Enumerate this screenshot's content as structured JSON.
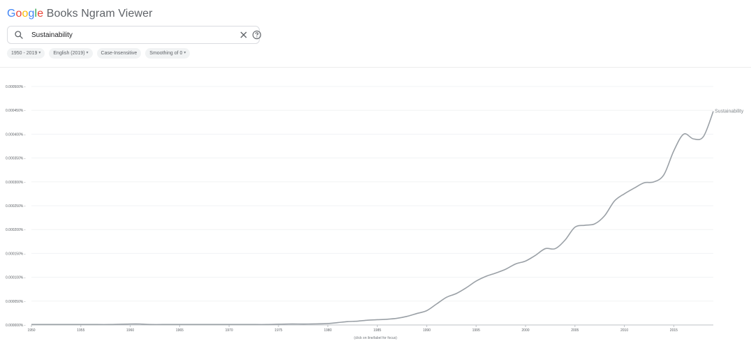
{
  "app": {
    "title_parts": [
      "G",
      "o",
      "o",
      "g",
      "l",
      "e",
      " Books Ngram Viewer"
    ]
  },
  "search": {
    "value": "Sustainability",
    "placeholder": ""
  },
  "filters": {
    "year_range": "1950 - 2019",
    "corpus": "English (2019)",
    "case": "Case-Insensitive",
    "smoothing": "Smoothing of 0"
  },
  "hint": "(click on line/label for focus)",
  "colors": {
    "line": "#9aa0a6",
    "grid": "#f1f3f4",
    "axis": "#bdc1c6"
  },
  "icons": {
    "search": "search-icon",
    "clear": "close-icon",
    "help": "help-icon",
    "dropdown": "caret-down-icon"
  },
  "chart_data": {
    "type": "line",
    "xlim": [
      1950,
      2019
    ],
    "ylim": [
      0,
      0.0005
    ],
    "x_ticks": [
      1950,
      1955,
      1960,
      1965,
      1970,
      1975,
      1980,
      1985,
      1990,
      1995,
      2000,
      2005,
      2010,
      2015
    ],
    "y_ticks": [
      "0.000000%",
      "0.000050%",
      "0.000100%",
      "0.000150%",
      "0.000200%",
      "0.000250%",
      "0.000300%",
      "0.000350%",
      "0.000400%",
      "0.000450%",
      "0.000500%"
    ],
    "y_tick_values": [
      0,
      5e-05,
      0.0001,
      0.00015,
      0.0002,
      0.00025,
      0.0003,
      0.00035,
      0.0004,
      0.00045,
      0.0005
    ],
    "grid": true,
    "series": [
      {
        "name": "Sustainability",
        "x": [
          1950,
          1952,
          1954,
          1956,
          1958,
          1960,
          1961,
          1962,
          1964,
          1966,
          1968,
          1970,
          1972,
          1974,
          1976,
          1978,
          1980,
          1981,
          1982,
          1983,
          1984,
          1985,
          1986,
          1987,
          1988,
          1989,
          1990,
          1991,
          1992,
          1993,
          1994,
          1995,
          1996,
          1997,
          1998,
          1999,
          2000,
          2001,
          2002,
          2003,
          2004,
          2005,
          2006,
          2007,
          2008,
          2009,
          2010,
          2011,
          2012,
          2013,
          2014,
          2015,
          2016,
          2017,
          2018,
          2019
        ],
        "values": [
          1e-06,
          1e-06,
          1e-06,
          1e-06,
          1e-06,
          2e-06,
          2e-06,
          1e-06,
          1e-06,
          1e-06,
          1e-06,
          1e-06,
          1e-06,
          1e-06,
          2e-06,
          2e-06,
          3e-06,
          5e-06,
          7e-06,
          8e-06,
          1e-05,
          1.1e-05,
          1.2e-05,
          1.4e-05,
          1.8e-05,
          2.4e-05,
          3e-05,
          4.4e-05,
          5.8e-05,
          6.6e-05,
          7.8e-05,
          9.2e-05,
          0.000102,
          0.000109,
          0.000117,
          0.000128,
          0.000134,
          0.000146,
          0.00016,
          0.00016,
          0.000178,
          0.000205,
          0.000209,
          0.000212,
          0.000229,
          0.00026,
          0.000275,
          0.000287,
          0.000298,
          0.0003,
          0.000315,
          0.000365,
          0.0004,
          0.00039,
          0.000395,
          0.000448
        ]
      }
    ]
  }
}
